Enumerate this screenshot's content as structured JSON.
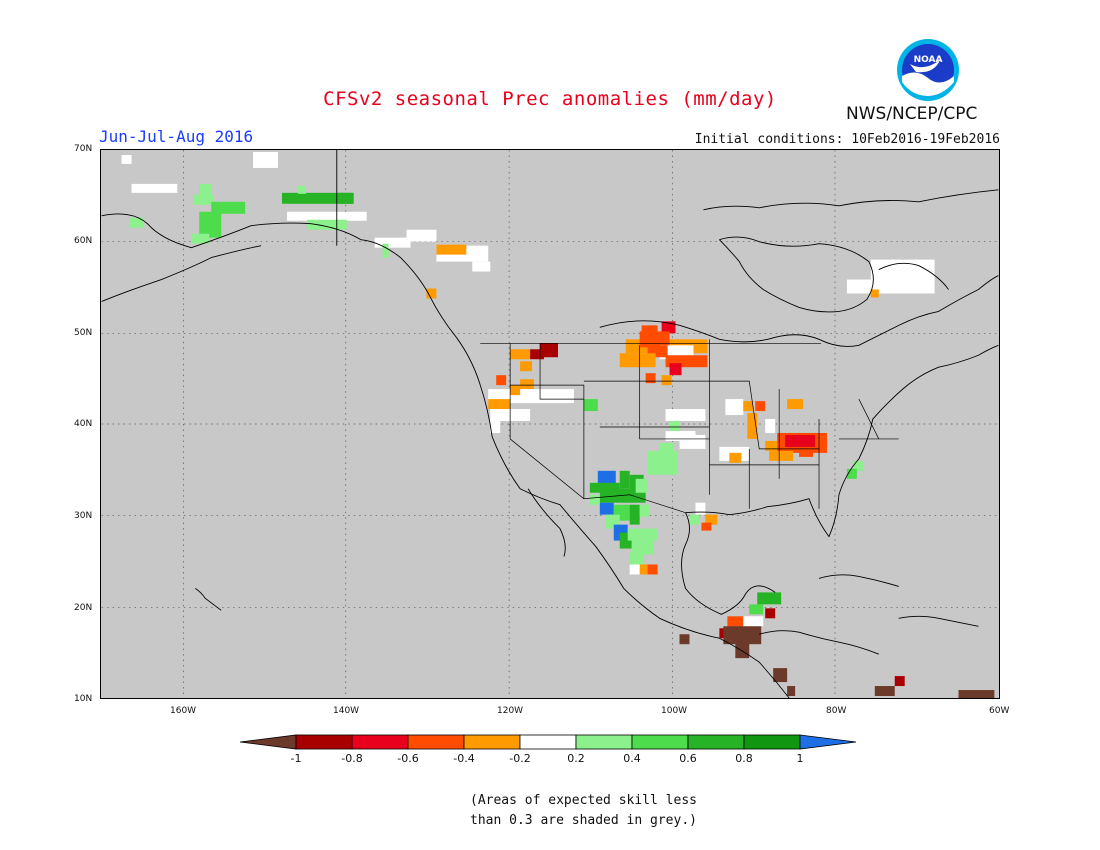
{
  "title": "CFSv2 seasonal Prec anomalies (mm/day)",
  "season": "Jun-Jul-Aug 2016",
  "initial_conditions": "Initial conditions: 10Feb2016-19Feb2016",
  "org": "NWS/NCEP/CPC",
  "logo_text": "NOAA",
  "lat_ticks": [
    "70N",
    "60N",
    "50N",
    "40N",
    "30N",
    "20N",
    "10N"
  ],
  "lon_ticks": [
    "160W",
    "140W",
    "120W",
    "100W",
    "80W",
    "60W"
  ],
  "colorbar": {
    "labels": [
      "-1",
      "-0.8",
      "-0.6",
      "-0.4",
      "-0.2",
      "0.2",
      "0.4",
      "0.6",
      "0.8",
      "1"
    ],
    "colors": [
      "#6b3a2a",
      "#a80000",
      "#e8001c",
      "#ff4c00",
      "#ff9a00",
      "#ffffff",
      "#8cf08c",
      "#4cdc4c",
      "#26b426",
      "#109610",
      "#1e6ee6"
    ]
  },
  "note_line1": "(Areas of expected skill less",
  "note_line2": "than 0.3 are shaded in grey.)",
  "colors": {
    "title": "#e8001c",
    "season": "#1a3cff",
    "background_grey": "#c8c8c8"
  }
}
